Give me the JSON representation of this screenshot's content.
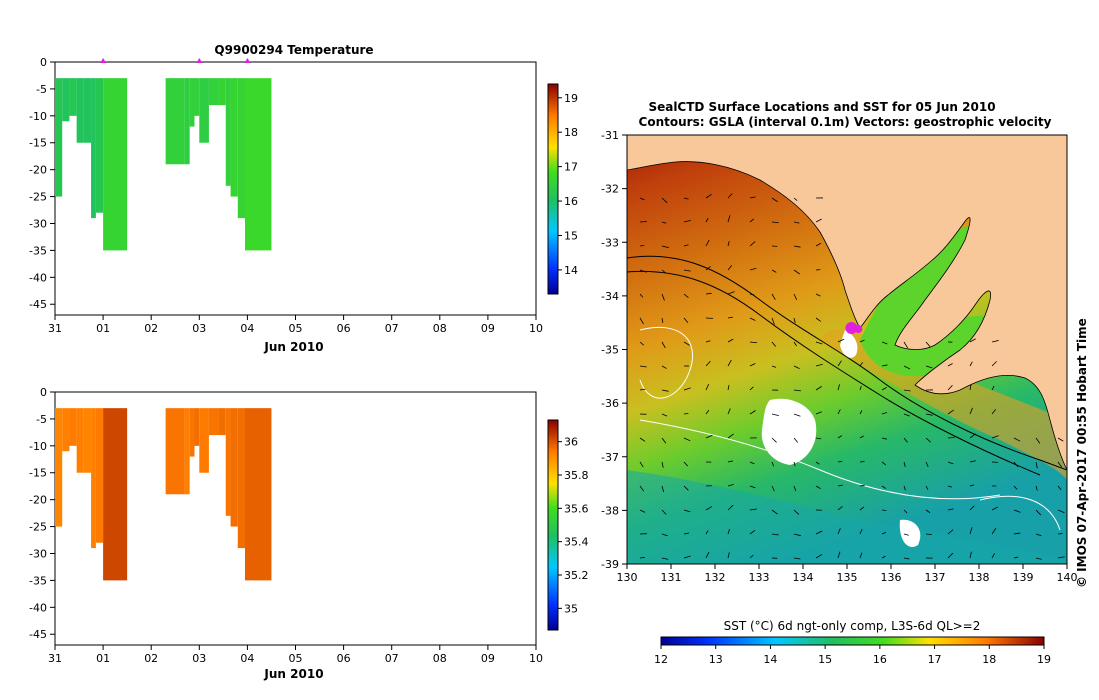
{
  "panels": {
    "profile_top_title": "Q9900294  Temperature",
    "profile_xlabel": "Jun 2010",
    "map_title_line1": "SealCTD Surface Locations and SST for 05 Jun 2010",
    "map_title_line2": "Contours: GSLA (interval 0.1m) Vectors: geostrophic velocity",
    "credit": "© IMOS 07-Apr-2017 00:55 Hobart Time",
    "sst_colorbar_label": "SST (°C) 6d ngt-only comp, L3S-6d QL>=2"
  },
  "colors": {
    "land": "#f9c89a",
    "dive_marker": "#e020e0",
    "coast": "#000000"
  },
  "chart_data": [
    {
      "id": "temperature_profile",
      "type": "heatmap",
      "title": "Q9900294  Temperature",
      "xlabel": "Jun 2010",
      "x_ticks": [
        "31",
        "01",
        "02",
        "03",
        "04",
        "05",
        "06",
        "07",
        "08",
        "09",
        "10"
      ],
      "x_range_days": [
        0,
        10
      ],
      "y_ticks": [
        0,
        -5,
        -10,
        -15,
        -20,
        -25,
        -30,
        -35,
        -40,
        -45
      ],
      "ylim": [
        -47,
        0
      ],
      "colorbar": {
        "ticks": [
          14,
          15,
          16,
          17,
          18,
          19
        ],
        "range": [
          13.3,
          19.4
        ]
      },
      "dive_marker_days": [
        1.0,
        3.0,
        4.0
      ],
      "profiles": [
        {
          "t0": 0.0,
          "t1": 0.15,
          "depth": -25,
          "value": 16.2
        },
        {
          "t0": 0.15,
          "t1": 0.3,
          "depth": -11,
          "value": 16.1
        },
        {
          "t0": 0.3,
          "t1": 0.45,
          "depth": -10,
          "value": 16.2
        },
        {
          "t0": 0.45,
          "t1": 0.6,
          "depth": -15,
          "value": 16.1
        },
        {
          "t0": 0.6,
          "t1": 0.75,
          "depth": -15,
          "value": 16.1
        },
        {
          "t0": 0.75,
          "t1": 0.85,
          "depth": -29,
          "value": 16.1
        },
        {
          "t0": 0.85,
          "t1": 1.0,
          "depth": -28,
          "value": 16.2
        },
        {
          "t0": 1.0,
          "t1": 1.5,
          "depth": -35,
          "value": 16.6
        },
        {
          "t0": 2.3,
          "t1": 2.7,
          "depth": -19,
          "value": 16.5
        },
        {
          "t0": 2.7,
          "t1": 2.8,
          "depth": -19,
          "value": 16.4
        },
        {
          "t0": 2.8,
          "t1": 2.9,
          "depth": -12,
          "value": 16.5
        },
        {
          "t0": 2.9,
          "t1": 3.0,
          "depth": -10,
          "value": 16.5
        },
        {
          "t0": 3.0,
          "t1": 3.2,
          "depth": -15,
          "value": 16.4
        },
        {
          "t0": 3.2,
          "t1": 3.4,
          "depth": -8,
          "value": 16.5
        },
        {
          "t0": 3.4,
          "t1": 3.55,
          "depth": -8,
          "value": 16.6
        },
        {
          "t0": 3.55,
          "t1": 3.65,
          "depth": -23,
          "value": 16.5
        },
        {
          "t0": 3.65,
          "t1": 3.8,
          "depth": -25,
          "value": 16.6
        },
        {
          "t0": 3.8,
          "t1": 3.95,
          "depth": -29,
          "value": 16.6
        },
        {
          "t0": 3.95,
          "t1": 4.5,
          "depth": -35,
          "value": 16.7
        }
      ]
    },
    {
      "id": "salinity_profile",
      "type": "heatmap",
      "title": "",
      "xlabel": "Jun 2010",
      "x_ticks": [
        "31",
        "01",
        "02",
        "03",
        "04",
        "05",
        "06",
        "07",
        "08",
        "09",
        "10"
      ],
      "x_range_days": [
        0,
        10
      ],
      "y_ticks": [
        0,
        -5,
        -10,
        -15,
        -20,
        -25,
        -30,
        -35,
        -40,
        -45
      ],
      "ylim": [
        -47,
        0
      ],
      "colorbar": {
        "ticks": [
          35,
          35.2,
          35.4,
          35.6,
          35.8,
          36
        ],
        "range": [
          34.87,
          36.13
        ]
      },
      "profiles": [
        {
          "t0": 0.0,
          "t1": 0.15,
          "depth": -25,
          "value": 35.92
        },
        {
          "t0": 0.15,
          "t1": 0.3,
          "depth": -11,
          "value": 35.93
        },
        {
          "t0": 0.3,
          "t1": 0.45,
          "depth": -10,
          "value": 35.94
        },
        {
          "t0": 0.45,
          "t1": 0.6,
          "depth": -15,
          "value": 35.93
        },
        {
          "t0": 0.6,
          "t1": 0.75,
          "depth": -15,
          "value": 35.92
        },
        {
          "t0": 0.75,
          "t1": 0.85,
          "depth": -29,
          "value": 35.93
        },
        {
          "t0": 0.85,
          "t1": 1.0,
          "depth": -28,
          "value": 35.94
        },
        {
          "t0": 1.0,
          "t1": 1.5,
          "depth": -35,
          "value": 36.02
        },
        {
          "t0": 2.3,
          "t1": 2.7,
          "depth": -19,
          "value": 35.95
        },
        {
          "t0": 2.7,
          "t1": 2.8,
          "depth": -19,
          "value": 35.93
        },
        {
          "t0": 2.8,
          "t1": 2.9,
          "depth": -12,
          "value": 35.95
        },
        {
          "t0": 2.9,
          "t1": 3.0,
          "depth": -10,
          "value": 35.96
        },
        {
          "t0": 3.0,
          "t1": 3.2,
          "depth": -15,
          "value": 35.94
        },
        {
          "t0": 3.2,
          "t1": 3.4,
          "depth": -8,
          "value": 35.95
        },
        {
          "t0": 3.4,
          "t1": 3.55,
          "depth": -8,
          "value": 35.96
        },
        {
          "t0": 3.55,
          "t1": 3.65,
          "depth": -23,
          "value": 35.95
        },
        {
          "t0": 3.65,
          "t1": 3.8,
          "depth": -25,
          "value": 35.96
        },
        {
          "t0": 3.8,
          "t1": 3.95,
          "depth": -29,
          "value": 35.96
        },
        {
          "t0": 3.95,
          "t1": 4.5,
          "depth": -35,
          "value": 35.98
        }
      ]
    },
    {
      "id": "sst_map",
      "type": "heatmap",
      "title": "SealCTD Surface Locations and SST for 05 Jun 2010",
      "subtitle": "Contours: GSLA (interval 0.1m) Vectors: geostrophic velocity",
      "x_ticks": [
        130,
        131,
        132,
        133,
        134,
        135,
        136,
        137,
        138,
        139,
        140
      ],
      "xlim": [
        130,
        140
      ],
      "y_ticks": [
        -31,
        -32,
        -33,
        -34,
        -35,
        -36,
        -37,
        -38,
        -39
      ],
      "ylim": [
        -39,
        -31
      ],
      "colorbar": {
        "label": "SST (°C) 6d ngt-only comp, L3S-6d QL>=2",
        "ticks": [
          12,
          13,
          14,
          15,
          16,
          17,
          18,
          19
        ],
        "range": [
          12,
          19
        ]
      },
      "seal_location": {
        "lon": 135.1,
        "lat": -34.6
      }
    }
  ]
}
